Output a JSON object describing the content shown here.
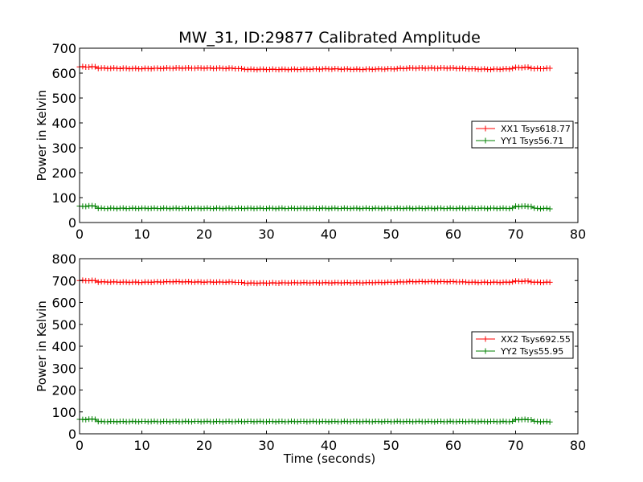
{
  "figure": {
    "title": "MW_31, ID:29877 Calibrated Amplitude",
    "xlabel": "Time (seconds)"
  },
  "chart_data": [
    {
      "type": "line",
      "title": "MW_31, ID:29877 Calibrated Amplitude",
      "xlabel": "",
      "ylabel": "Power in Kelvin",
      "xlim": [
        0,
        80
      ],
      "ylim": [
        0,
        700
      ],
      "xticks": [
        0,
        10,
        20,
        30,
        40,
        50,
        60,
        70,
        80
      ],
      "yticks": [
        0,
        100,
        200,
        300,
        400,
        500,
        600,
        700
      ],
      "grid": false,
      "legend_position": "center-right",
      "marker": "+",
      "x": {
        "start": 0,
        "end": 75.5,
        "step": 0.5
      },
      "series": [
        {
          "name": "XX1 Tsys618.77",
          "color": "#ff0000",
          "segments": [
            [
              0,
              625
            ],
            [
              2.5,
              625
            ],
            [
              3,
              620
            ],
            [
              10,
              618
            ],
            [
              15,
              620
            ],
            [
              20,
              620
            ],
            [
              25,
              619
            ],
            [
              27,
              615
            ],
            [
              35,
              615
            ],
            [
              40,
              617
            ],
            [
              45,
              615
            ],
            [
              50,
              617
            ],
            [
              53,
              620
            ],
            [
              60,
              620
            ],
            [
              63,
              617
            ],
            [
              66,
              615
            ],
            [
              69,
              617
            ],
            [
              70,
              622
            ],
            [
              72,
              623
            ],
            [
              73,
              618
            ],
            [
              75.5,
              619
            ]
          ]
        },
        {
          "name": "YY1 Tsys56.71",
          "color": "#008000",
          "segments": [
            [
              0,
              65
            ],
            [
              2.5,
              67
            ],
            [
              3,
              57
            ],
            [
              69.5,
              57
            ],
            [
              70,
              65
            ],
            [
              72.5,
              65
            ],
            [
              73,
              57
            ],
            [
              75.5,
              56
            ]
          ]
        }
      ]
    },
    {
      "type": "line",
      "title": "",
      "xlabel": "Time (seconds)",
      "ylabel": "Power in Kelvin",
      "xlim": [
        0,
        80
      ],
      "ylim": [
        0,
        800
      ],
      "xticks": [
        0,
        10,
        20,
        30,
        40,
        50,
        60,
        70,
        80
      ],
      "yticks": [
        0,
        100,
        200,
        300,
        400,
        500,
        600,
        700,
        800
      ],
      "grid": false,
      "legend_position": "center-right",
      "marker": "+",
      "x": {
        "start": 0,
        "end": 75.5,
        "step": 0.5
      },
      "series": [
        {
          "name": "XX2 Tsys692.55",
          "color": "#ff0000",
          "segments": [
            [
              0,
              700
            ],
            [
              2.5,
              700
            ],
            [
              3,
              694
            ],
            [
              10,
              692
            ],
            [
              15,
              695
            ],
            [
              20,
              693
            ],
            [
              25,
              693
            ],
            [
              27,
              688
            ],
            [
              35,
              690
            ],
            [
              40,
              690
            ],
            [
              45,
              690
            ],
            [
              50,
              692
            ],
            [
              53,
              695
            ],
            [
              60,
              695
            ],
            [
              63,
              692
            ],
            [
              69,
              692
            ],
            [
              70,
              697
            ],
            [
              72,
              697
            ],
            [
              73,
              692
            ],
            [
              75.5,
              692
            ]
          ]
        },
        {
          "name": "YY2 Tsys55.95",
          "color": "#008000",
          "segments": [
            [
              0,
              65
            ],
            [
              2.5,
              67
            ],
            [
              3,
              56
            ],
            [
              69.5,
              56
            ],
            [
              70,
              65
            ],
            [
              72.5,
              65
            ],
            [
              73,
              56
            ],
            [
              75.5,
              55
            ]
          ]
        }
      ]
    }
  ]
}
